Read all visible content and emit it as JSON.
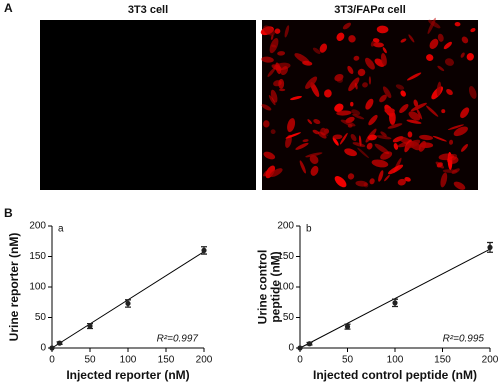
{
  "panel_a": {
    "label": "A",
    "images": [
      {
        "title": "3T3 cell"
      },
      {
        "title": "3T3/FAPα cell"
      }
    ]
  },
  "panel_b": {
    "label": "B"
  },
  "chart_data": [
    {
      "type": "scatter",
      "panel": "a",
      "xlabel": "Injected reporter (nM)",
      "ylabel": [
        "Urine reporter (nM)"
      ],
      "x": [
        0,
        10,
        50,
        100,
        200
      ],
      "values": [
        0,
        8,
        36,
        73,
        160
      ],
      "errors": [
        0,
        2,
        4,
        6,
        6
      ],
      "color": "#222222",
      "fit": {
        "x": [
          0,
          200
        ],
        "y": [
          0,
          158
        ]
      },
      "annotation": "R²=0.997",
      "xlim": [
        0,
        200
      ],
      "xticks": [
        0,
        50,
        100,
        150,
        200
      ],
      "ylim": [
        0,
        200
      ],
      "yticks": [
        0,
        50,
        100,
        150,
        200
      ]
    },
    {
      "type": "scatter",
      "panel": "b",
      "xlabel": "Injected control peptide (nM)",
      "ylabel": [
        "Urine control",
        "peptide (nM)"
      ],
      "x": [
        0,
        10,
        50,
        100,
        200
      ],
      "values": [
        0,
        7,
        35,
        74,
        165
      ],
      "errors": [
        0,
        2,
        4,
        6,
        8
      ],
      "color": "#222222",
      "fit": {
        "x": [
          0,
          200
        ],
        "y": [
          0,
          162
        ]
      },
      "annotation": "R²=0.995",
      "xlim": [
        0,
        200
      ],
      "xticks": [
        0,
        50,
        100,
        150,
        200
      ],
      "ylim": [
        0,
        200
      ],
      "yticks": [
        0,
        50,
        100,
        150,
        200
      ]
    }
  ]
}
